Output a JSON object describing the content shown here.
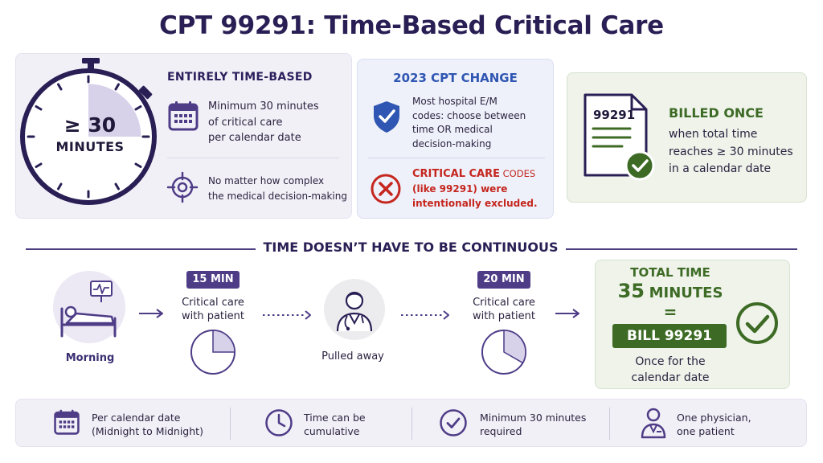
{
  "title": "CPT 99291: Time-Based Critical Care",
  "top_left": {
    "stopwatch_value": "≥ 30",
    "stopwatch_unit": "MINUTES",
    "heading": "ENTIRELY TIME-BASED",
    "point1_lines": [
      "Minimum 30 minutes",
      "of critical care",
      "per calendar date"
    ],
    "point2_lines": [
      "No matter how complex",
      "the medical decision-making"
    ]
  },
  "top_middle": {
    "heading": "2023 CPT CHANGE",
    "point1_lines": [
      "Most hospital E/M",
      "codes: choose between",
      "time OR medical",
      "decision-making"
    ],
    "point2_line1a": "CRITICAL CARE",
    "point2_line1b": " CODES",
    "point2_line2": "(like 99291) were",
    "point2_line3": "intentionally excluded."
  },
  "top_right": {
    "doc_code": "99291",
    "heading": "BILLED ONCE",
    "lines": [
      "when total time",
      "reaches ≥ 30 minutes",
      "in a calendar date"
    ]
  },
  "timeline": {
    "section_title": "TIME DOESN’T HAVE TO BE CONTINUOUS",
    "step1_label": "Morning",
    "segment1_badge": "15 MIN",
    "segment1_lines": [
      "Critical care",
      "with patient"
    ],
    "segment1_fraction": 0.25,
    "step2_label": "Pulled away",
    "segment2_badge": "20 MIN",
    "segment2_lines": [
      "Critical care",
      "with patient"
    ],
    "segment2_fraction": 0.333
  },
  "total": {
    "heading": "TOTAL TIME",
    "minutes": "35",
    "minutes_unit": "MINUTES",
    "equals": "=",
    "bill_label": "BILL 99291",
    "lines": [
      "Once for the",
      "calendar date"
    ]
  },
  "footer": [
    {
      "icon": "calendar-icon",
      "lines": [
        "Per calendar date",
        "(Midnight to Midnight)"
      ]
    },
    {
      "icon": "clock-icon",
      "lines": [
        "Time can be",
        "cumulative"
      ]
    },
    {
      "icon": "check-circle-icon",
      "lines": [
        "Minimum 30 minutes",
        "required"
      ]
    },
    {
      "icon": "physician-icon",
      "lines": [
        "One physician,",
        "one patient"
      ]
    }
  ],
  "colors": {
    "navy": "#2a1f55",
    "purple": "#4e3c87",
    "blue": "#2f56b2",
    "red": "#c5261e",
    "green": "#3d6b25"
  }
}
